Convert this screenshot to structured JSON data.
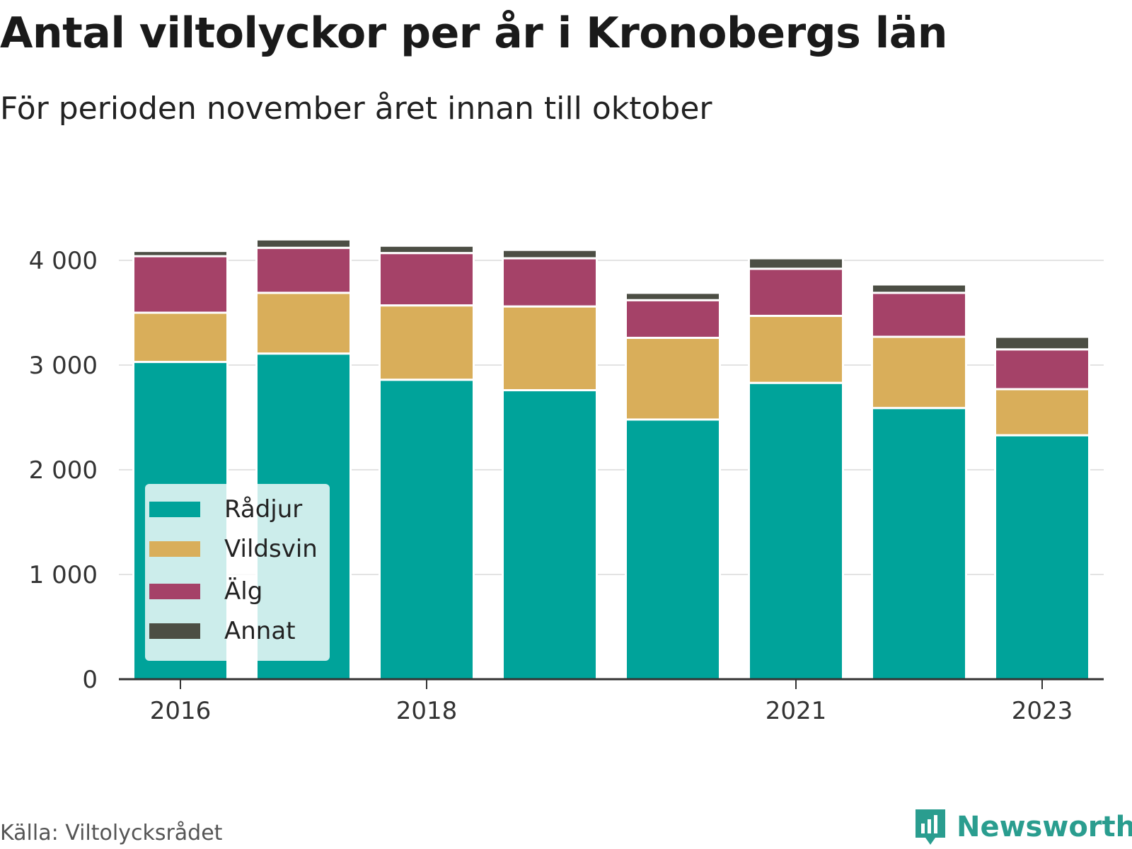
{
  "title": "Antal viltolyckor per år i Kronobergs län",
  "subtitle": "För perioden november året innan till oktober",
  "source": "Källa: Viltolycksrådet",
  "brand": "Newsworthy",
  "colors": {
    "radjur": "#00a39a",
    "vildsvin": "#d9ae5a",
    "alg": "#a54268",
    "annat": "#4c4e44",
    "grid": "#e3e3e3",
    "axis": "#333333",
    "brand": "#2a9d8f"
  },
  "chart_data": {
    "type": "bar",
    "stacked": true,
    "categories": [
      "2016",
      "2017",
      "2018",
      "2019",
      "2020",
      "2021",
      "2022",
      "2023"
    ],
    "x_tick_labels": [
      "2016",
      "2018",
      "2021",
      "2023"
    ],
    "y_ticks": [
      0,
      1000,
      2000,
      3000,
      4000
    ],
    "y_tick_labels": [
      "0",
      "1 000",
      "2 000",
      "3 000",
      "4 000"
    ],
    "ylim": [
      0,
      4300
    ],
    "grid": true,
    "legend_position": "bottom-left",
    "series": [
      {
        "name": "Rådjur",
        "color": "#00a39a",
        "values": [
          3030,
          3110,
          2860,
          2760,
          2480,
          2830,
          2590,
          2330
        ]
      },
      {
        "name": "Vildsvin",
        "color": "#d9ae5a",
        "values": [
          470,
          580,
          710,
          800,
          780,
          640,
          680,
          440
        ]
      },
      {
        "name": "Älg",
        "color": "#a54268",
        "values": [
          540,
          430,
          500,
          460,
          360,
          450,
          420,
          380
        ]
      },
      {
        "name": "Annat",
        "color": "#4c4e44",
        "values": [
          50,
          80,
          70,
          80,
          70,
          100,
          80,
          120
        ]
      }
    ]
  }
}
